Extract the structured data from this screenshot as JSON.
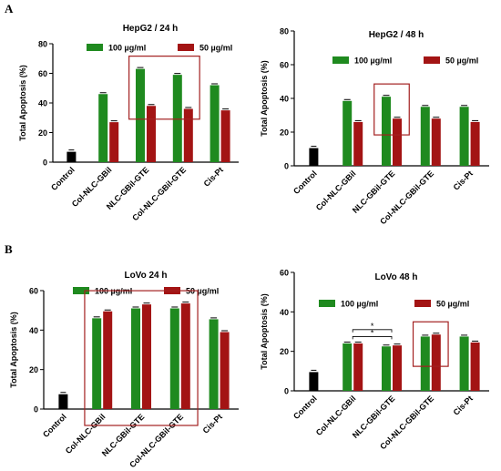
{
  "panels": [
    {
      "letter": "A"
    },
    {
      "letter": "B"
    }
  ],
  "colors": {
    "control": "#000000",
    "series_100": "#1f8a1f",
    "series_50": "#a31414",
    "highlight_box": "#a32020"
  },
  "chart_data": [
    {
      "type": "bar",
      "title": "HepG2 / 24 h",
      "ylabel": "Total Apoptosis (%)",
      "ylim": [
        0,
        80
      ],
      "yticks": [
        0,
        20,
        40,
        60,
        80
      ],
      "categories": [
        "Control",
        "Col-NLC-GBil",
        "NLC-GBil-GTE",
        "Col-NLC-GBil-GTE",
        "Cis-Pt"
      ],
      "control_value": 7,
      "series": [
        {
          "name": "100 µg/ml",
          "values": [
            null,
            46,
            63,
            59,
            52
          ]
        },
        {
          "name": "50 µg/ml",
          "values": [
            null,
            27,
            38,
            36,
            35
          ]
        }
      ],
      "highlight_categories": [
        2,
        3
      ],
      "annotations": []
    },
    {
      "type": "bar",
      "title": "HepG2 /  48 h",
      "ylabel": "Total Apoptosis (%)",
      "ylim": [
        0,
        80
      ],
      "yticks": [
        0,
        20,
        40,
        60,
        80
      ],
      "categories": [
        "Control",
        "Col-NLC-GBil",
        "NLC-GBil-GTE",
        "Col-NLC-GBil-GTE",
        "Cis-Pt"
      ],
      "control_value": 10.5,
      "series": [
        {
          "name": "100 µg/ml",
          "values": [
            null,
            38.5,
            41,
            35,
            35
          ]
        },
        {
          "name": "50 µg/ml",
          "values": [
            null,
            26,
            28,
            28,
            26
          ]
        }
      ],
      "highlight_categories": [
        2
      ],
      "annotations": []
    },
    {
      "type": "bar",
      "title": "LoVo 24 h",
      "ylabel": "Total Apoptosis (%)",
      "ylim": [
        0,
        60
      ],
      "yticks": [
        0,
        20,
        40,
        60
      ],
      "categories": [
        "Control",
        "Col-NLC-GBil",
        "NLC-GBil-GTE",
        "Col-NLC-GBil-GTE",
        "Cis-Pt"
      ],
      "control_value": 7.5,
      "series": [
        {
          "name": "100 µg/ml",
          "values": [
            null,
            46,
            51,
            51,
            45.5
          ]
        },
        {
          "name": "50 µg/ml",
          "values": [
            null,
            49.5,
            53,
            53.5,
            39
          ]
        }
      ],
      "highlight_categories": [
        1,
        2,
        3
      ],
      "annotations": []
    },
    {
      "type": "bar",
      "title": "LoVo 48 h",
      "ylabel": "Total Apoptosis (%)",
      "ylim": [
        0,
        60
      ],
      "yticks": [
        0,
        20,
        40,
        60
      ],
      "categories": [
        "Control",
        "Col-NLC-GBil",
        "NLC-GBil-GTE",
        "Col-NLC-GBil-GTE",
        "Cis-Pt"
      ],
      "control_value": 9.5,
      "series": [
        {
          "name": "100 µg/ml",
          "values": [
            null,
            24,
            22.5,
            27.5,
            27.5
          ]
        },
        {
          "name": "50 µg/ml",
          "values": [
            null,
            24,
            23,
            28.5,
            24.5
          ]
        }
      ],
      "highlight_categories": [
        3
      ],
      "annotations": [
        {
          "text": "*",
          "from": 1,
          "to": 2,
          "level": 27.5
        },
        {
          "text": "*",
          "from": 1,
          "to": 2,
          "level": 31
        }
      ]
    }
  ]
}
